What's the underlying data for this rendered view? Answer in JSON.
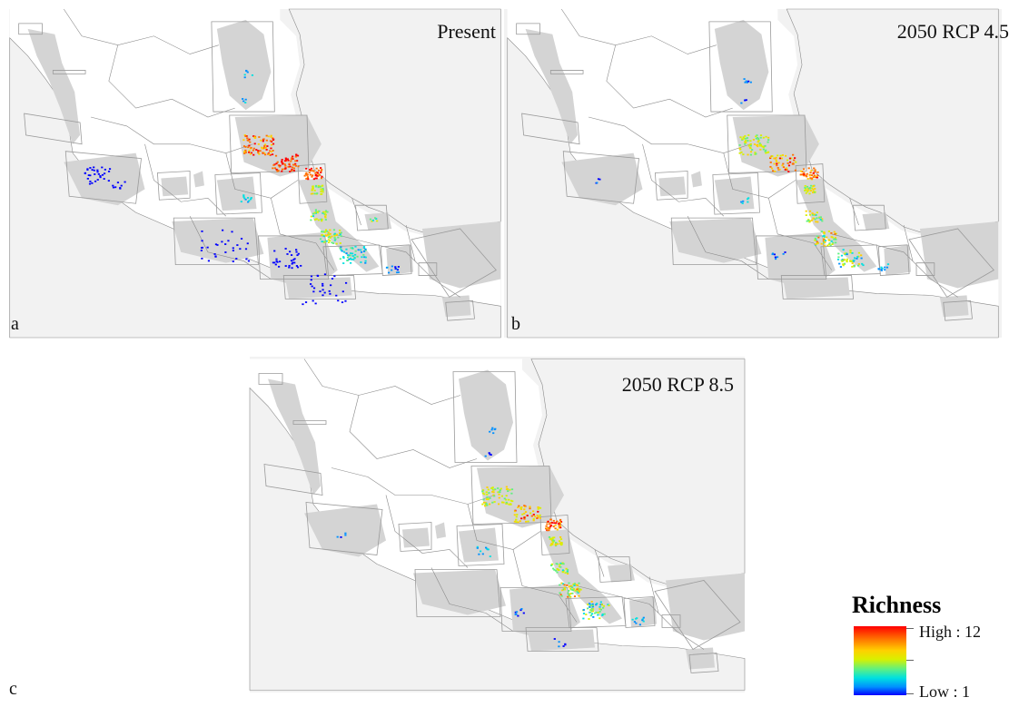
{
  "panels": [
    {
      "title": "Present",
      "letter": "a"
    },
    {
      "title": "2050 RCP 4.5",
      "letter": "b"
    },
    {
      "title": "2050 RCP 8.5",
      "letter": "c"
    }
  ],
  "legend": {
    "title": "Richness",
    "high_label": "High : 12",
    "low_label": "Low : 1",
    "high_value": 12,
    "low_value": 1,
    "colors": [
      "#0000ff",
      "#0090ff",
      "#00e0e0",
      "#60f080",
      "#d8f000",
      "#ffd000",
      "#ff7000",
      "#ff0000"
    ]
  },
  "colors": {
    "land": "#ffffff",
    "sea": "#f2f2f2",
    "range": "#d4d4d4",
    "border": "#8a8a8a",
    "box": "#9a9a9a"
  }
}
